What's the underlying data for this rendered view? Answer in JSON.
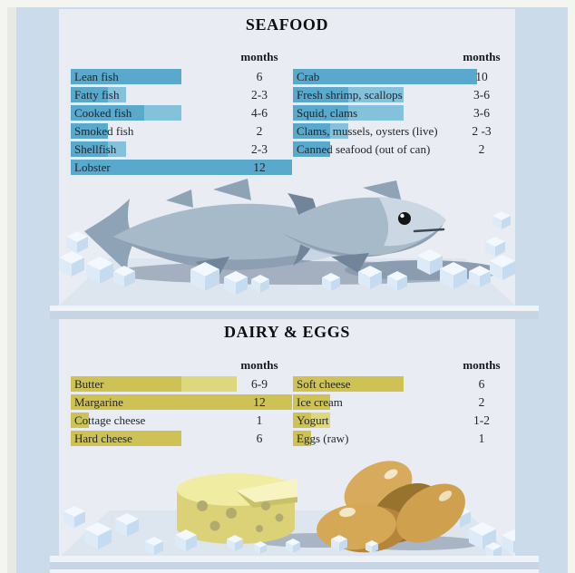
{
  "chart_data": [
    {
      "type": "bar",
      "title": "SEAFOOD",
      "months_label": "months",
      "unit": "months",
      "columns": [
        [
          {
            "label": "Lean fish",
            "display": "6",
            "min": 6,
            "max": 6
          },
          {
            "label": "Fatty fish",
            "display": "2-3",
            "min": 2,
            "max": 3
          },
          {
            "label": "Cooked fish",
            "display": "4-6",
            "min": 4,
            "max": 6
          },
          {
            "label": "Smoked fish",
            "display": "2",
            "min": 2,
            "max": 2
          },
          {
            "label": "Shellfish",
            "display": "2-3",
            "min": 2,
            "max": 3
          },
          {
            "label": "Lobster",
            "display": "12",
            "min": 12,
            "max": 12
          }
        ],
        [
          {
            "label": "Crab",
            "display": "10",
            "min": 10,
            "max": 10
          },
          {
            "label": "Fresh shrimp, scallops",
            "display": "3-6",
            "min": 3,
            "max": 6
          },
          {
            "label": "Squid, clams",
            "display": "3-6",
            "min": 3,
            "max": 6
          },
          {
            "label": "Clams, mussels, oysters (live)",
            "display": "2 -3",
            "min": 2,
            "max": 3
          },
          {
            "label": "Canned seafood (out of can)",
            "display": "2",
            "min": 2,
            "max": 2
          }
        ]
      ]
    },
    {
      "type": "bar",
      "title": "DAIRY & EGGS",
      "months_label": "months",
      "unit": "months",
      "columns": [
        [
          {
            "label": "Butter",
            "display": "6-9",
            "min": 6,
            "max": 9
          },
          {
            "label": "Margarine",
            "display": "12",
            "min": 12,
            "max": 12
          },
          {
            "label": "Cottage cheese",
            "display": "1",
            "min": 1,
            "max": 1
          },
          {
            "label": "Hard cheese",
            "display": "6",
            "min": 6,
            "max": 6
          }
        ],
        [
          {
            "label": "Soft cheese",
            "display": "6",
            "min": 6,
            "max": 6
          },
          {
            "label": "Ice cream",
            "display": "2",
            "min": 2,
            "max": 2
          },
          {
            "label": "Yogurt",
            "display": "1-2",
            "min": 1,
            "max": 2
          },
          {
            "label": "Eggs (raw)",
            "display": "1",
            "min": 1,
            "max": 1
          }
        ]
      ]
    }
  ],
  "colors": {
    "seafood_bar": "#58a9cb",
    "seafood_bar_light": "#84c1da",
    "dairy_bar": "#cfc254",
    "dairy_bar_light": "#ded77e",
    "panel_bg": "#e9edf3",
    "frame_bg": "#ccdbe9"
  }
}
